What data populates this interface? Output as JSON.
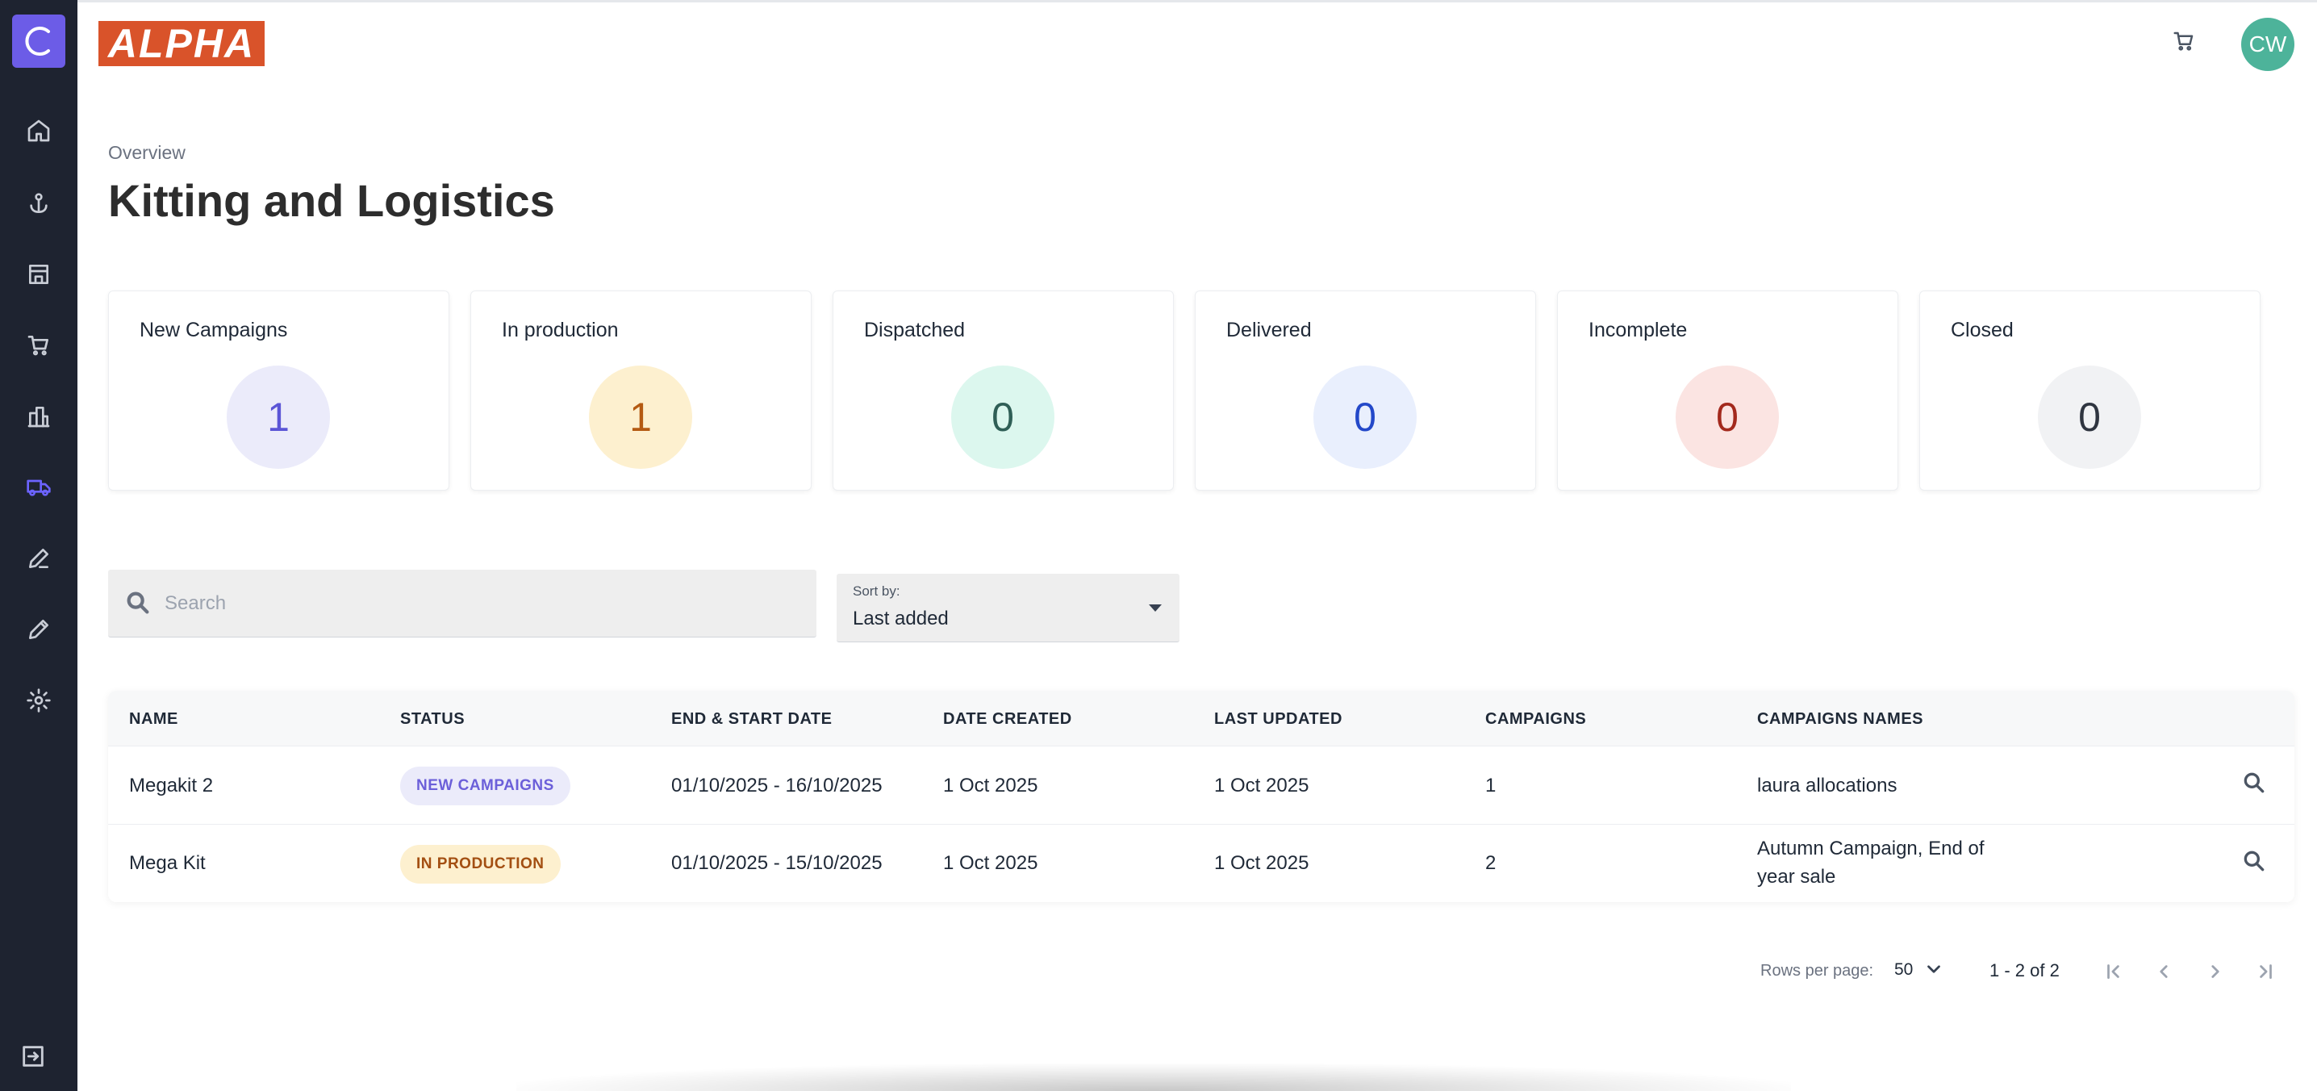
{
  "app": {
    "brand": "ALPHA",
    "sidebar_logo_letter": "C",
    "avatar_initials": "CW"
  },
  "sidebar": {
    "icons": [
      "home-icon",
      "anchor-icon",
      "store-icon",
      "cart-icon",
      "building-icon",
      "truck-icon",
      "pen-icon",
      "pen-alt-icon",
      "gear-icon",
      "logout-icon"
    ],
    "active": "truck-icon"
  },
  "header": {
    "breadcrumb": "Overview",
    "title": "Kitting and Logistics"
  },
  "stats": [
    {
      "label": "New Campaigns",
      "value": "1",
      "bg": "#ebebfa",
      "fg": "#5b55d6"
    },
    {
      "label": "In production",
      "value": "1",
      "bg": "#fdf0cf",
      "fg": "#b45a12"
    },
    {
      "label": "Dispatched",
      "value": "0",
      "bg": "#dcf7ee",
      "fg": "#2f5f56"
    },
    {
      "label": "Delivered",
      "value": "0",
      "bg": "#e9effd",
      "fg": "#2348c9"
    },
    {
      "label": "Incomplete",
      "value": "0",
      "bg": "#fbe4e2",
      "fg": "#a3291d"
    },
    {
      "label": "Closed",
      "value": "0",
      "bg": "#f1f2f4",
      "fg": "#2f3540"
    }
  ],
  "search": {
    "placeholder": "Search",
    "value": ""
  },
  "sort": {
    "label": "Sort by:",
    "value": "Last added"
  },
  "table": {
    "columns": [
      "NAME",
      "STATUS",
      "END & START DATE",
      "DATE CREATED",
      "LAST UPDATED",
      "CAMPAIGNS",
      "CAMPAIGNS NAMES"
    ],
    "rows": [
      {
        "name": "Megakit 2",
        "status": "NEW CAMPAIGNS",
        "status_bg": "#ebebfa",
        "status_fg": "#6b5fd9",
        "dates": "01/10/2025 - 16/10/2025",
        "created": "1 Oct 2025",
        "updated": "1 Oct 2025",
        "campaigns": "1",
        "campaign_names": [
          "laura allocations"
        ]
      },
      {
        "name": "Mega Kit",
        "status": "IN PRODUCTION",
        "status_bg": "#fdf0cf",
        "status_fg": "#a34f12",
        "dates": "01/10/2025 - 15/10/2025",
        "created": "1 Oct 2025",
        "updated": "1 Oct 2025",
        "campaigns": "2",
        "campaign_names": [
          "Autumn Campaign, End of",
          "year sale"
        ]
      }
    ]
  },
  "pagination": {
    "rows_label": "Rows per page:",
    "rows_value": "50",
    "range": "1 - 2 of 2"
  }
}
